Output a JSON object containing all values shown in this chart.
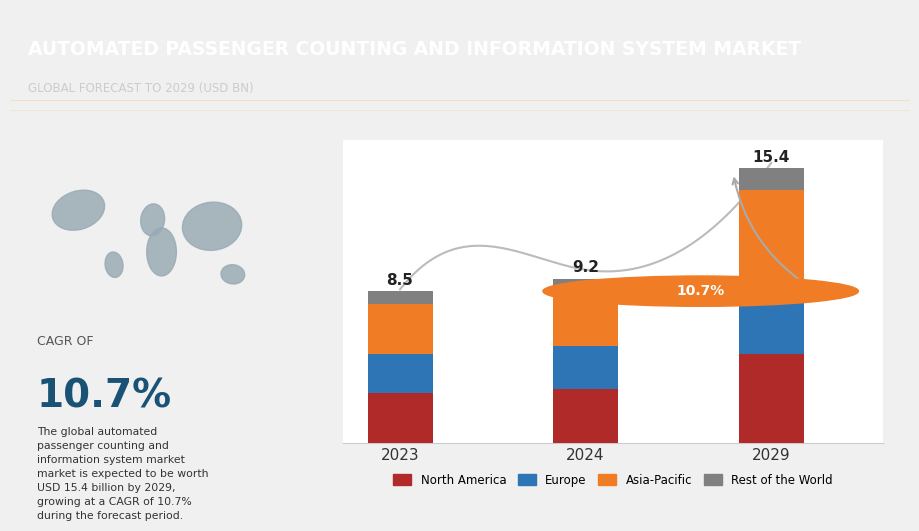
{
  "title": "AUTOMATED PASSENGER COUNTING AND INFORMATION SYSTEM MARKET",
  "subtitle": "GLOBAL FORECAST TO 2029 (USD BN)",
  "years": [
    "2023",
    "2024",
    "2029"
  ],
  "totals": [
    8.5,
    9.2,
    15.4
  ],
  "segments": {
    "North America": [
      2.8,
      3.0,
      5.0
    ],
    "Europe": [
      2.2,
      2.4,
      4.0
    ],
    "Asia-Pacific": [
      2.8,
      3.1,
      5.2
    ],
    "Rest of the World": [
      0.7,
      0.7,
      1.2
    ]
  },
  "colors": {
    "North America": "#b02a2a",
    "Europe": "#2e75b6",
    "Asia-Pacific": "#f07c26",
    "Rest of the World": "#808080"
  },
  "cagr": "10.7%",
  "cagr_text": "CAGR OF",
  "description": "The global automated\npassenger counting and\ninformation system market\nmarket is expected to be worth\nUSD 15.4 billion by 2029,\ngrowing at a CAGR of 10.7%\nduring the forecast period.",
  "header_bg": "#0a2a4a",
  "chart_bg": "#f0f0f0",
  "bar_width": 0.35,
  "ylim": [
    0,
    17
  ]
}
